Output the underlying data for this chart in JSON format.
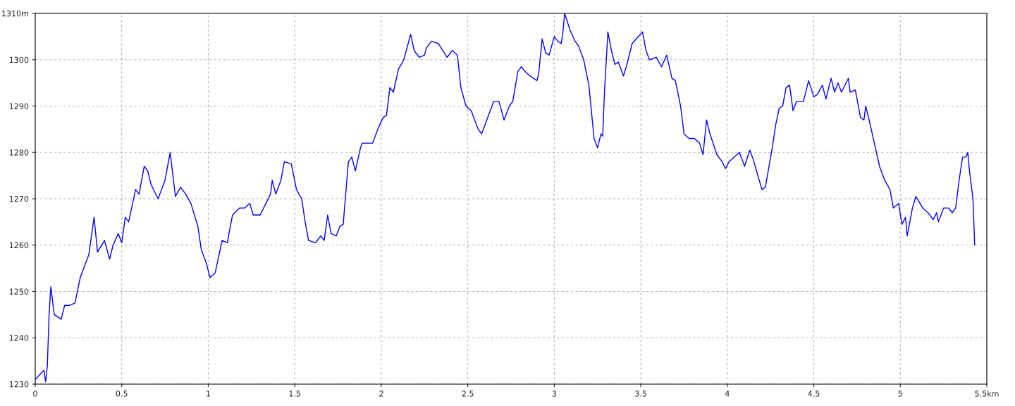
{
  "chart_data": {
    "type": "line",
    "x": [
      0,
      0.05,
      0.06,
      0.07,
      0.08,
      0.09,
      0.11,
      0.15,
      0.17,
      0.2,
      0.23,
      0.26,
      0.29,
      0.31,
      0.34,
      0.36,
      0.4,
      0.43,
      0.45,
      0.48,
      0.5,
      0.52,
      0.54,
      0.58,
      0.6,
      0.63,
      0.65,
      0.67,
      0.71,
      0.75,
      0.78,
      0.81,
      0.84,
      0.87,
      0.9,
      0.94,
      0.96,
      0.99,
      1.01,
      1.04,
      1.08,
      1.11,
      1.14,
      1.18,
      1.21,
      1.24,
      1.26,
      1.3,
      1.36,
      1.37,
      1.39,
      1.42,
      1.44,
      1.48,
      1.51,
      1.54,
      1.56,
      1.58,
      1.62,
      1.65,
      1.67,
      1.69,
      1.71,
      1.74,
      1.76,
      1.78,
      1.81,
      1.83,
      1.85,
      1.88,
      1.89,
      1.95,
      1.98,
      2.01,
      2.03,
      2.05,
      2.07,
      2.1,
      2.13,
      2.17,
      2.19,
      2.22,
      2.25,
      2.26,
      2.29,
      2.33,
      2.38,
      2.41,
      2.44,
      2.46,
      2.49,
      2.52,
      2.56,
      2.58,
      2.63,
      2.65,
      2.68,
      2.71,
      2.74,
      2.76,
      2.79,
      2.81,
      2.83,
      2.86,
      2.9,
      2.91,
      2.93,
      2.95,
      2.97,
      3.0,
      3.02,
      3.04,
      3.05,
      3.06,
      3.09,
      3.12,
      3.14,
      3.17,
      3.2,
      3.23,
      3.25,
      3.27,
      3.28,
      3.29,
      3.31,
      3.33,
      3.35,
      3.37,
      3.4,
      3.42,
      3.45,
      3.51,
      3.53,
      3.55,
      3.59,
      3.62,
      3.65,
      3.68,
      3.7,
      3.73,
      3.75,
      3.78,
      3.81,
      3.84,
      3.86,
      3.88,
      3.9,
      3.94,
      3.97,
      3.99,
      4.01,
      4.07,
      4.1,
      4.13,
      4.15,
      4.2,
      4.22,
      4.26,
      4.28,
      4.3,
      4.32,
      4.34,
      4.36,
      4.38,
      4.4,
      4.44,
      4.47,
      4.5,
      4.52,
      4.55,
      4.57,
      4.6,
      4.62,
      4.64,
      4.66,
      4.7,
      4.71,
      4.74,
      4.77,
      4.79,
      4.8,
      4.82,
      4.85,
      4.88,
      4.91,
      4.94,
      4.96,
      4.99,
      5.01,
      5.03,
      5.04,
      5.07,
      5.09,
      5.13,
      5.16,
      5.19,
      5.21,
      5.22,
      5.25,
      5.28,
      5.3,
      5.32,
      5.34,
      5.36,
      5.38,
      5.39,
      5.4,
      5.42,
      5.43
    ],
    "series": [
      {
        "color": "#0000ff",
        "values": [
          1231,
          1233,
          1230.5,
          1234,
          1245,
          1251,
          1245,
          1244,
          1247,
          1247,
          1247.5,
          1253,
          1256,
          1258,
          1266,
          1258.5,
          1261,
          1257,
          1260,
          1262.5,
          1260.5,
          1266,
          1265,
          1272,
          1271,
          1277,
          1276,
          1273,
          1270,
          1274,
          1280,
          1270.5,
          1272.5,
          1271,
          1269,
          1264,
          1259,
          1256,
          1253,
          1254,
          1261,
          1260.5,
          1266.5,
          1268,
          1268,
          1269,
          1266.5,
          1266.5,
          1271,
          1274,
          1271,
          1274,
          1278,
          1277.5,
          1272,
          1270,
          1265,
          1261,
          1260.5,
          1262,
          1261,
          1266.5,
          1262.5,
          1262,
          1264,
          1264.5,
          1278,
          1279,
          1276,
          1281,
          1282,
          1282,
          1285,
          1287.5,
          1288,
          1294,
          1293,
          1298,
          1300,
          1305.5,
          1302,
          1300.5,
          1301,
          1302.5,
          1304,
          1303.5,
          1300.5,
          1302,
          1301,
          1294,
          1290,
          1289,
          1285,
          1284,
          1289,
          1291,
          1291,
          1287,
          1290,
          1291,
          1297.5,
          1298.5,
          1297.5,
          1296.5,
          1295.5,
          1297,
          1304.5,
          1301.5,
          1301,
          1305,
          1304,
          1303.5,
          1306,
          1310,
          1306.5,
          1304,
          1303,
          1300,
          1294.5,
          1283,
          1281,
          1284,
          1283.5,
          1293,
          1306,
          1302,
          1299,
          1299.5,
          1296.5,
          1299,
          1303.5,
          1306,
          1302,
          1300,
          1300.5,
          1298.5,
          1301,
          1296,
          1295.5,
          1290,
          1284,
          1283,
          1283,
          1282,
          1279.5,
          1287,
          1284,
          1279.5,
          1278,
          1276.5,
          1278,
          1280,
          1277,
          1280.5,
          1278.5,
          1272,
          1272.5,
          1281,
          1286,
          1289.5,
          1290,
          1294,
          1294.5,
          1289,
          1291,
          1291,
          1295.5,
          1292,
          1292.5,
          1294.5,
          1291.5,
          1296,
          1293,
          1295,
          1293,
          1296,
          1293,
          1293.5,
          1287.5,
          1287,
          1290,
          1287,
          1282,
          1277,
          1274,
          1272,
          1268,
          1269,
          1264.5,
          1266,
          1262,
          1268,
          1270.5,
          1268,
          1267,
          1265.5,
          1267,
          1265,
          1268,
          1268,
          1267,
          1268,
          1274,
          1279,
          1279,
          1280,
          1276,
          1270,
          1260
        ]
      }
    ],
    "xlim": [
      0,
      5.5
    ],
    "xticks": [
      0,
      0.5,
      1,
      1.5,
      2,
      2.5,
      3,
      3.5,
      4,
      4.5,
      5,
      {
        "value": 5.5,
        "label": "5.5km"
      }
    ],
    "ylim": [
      1230,
      1310
    ],
    "yticks": [
      1230,
      1240,
      1250,
      1260,
      1270,
      1280,
      1290,
      1300,
      {
        "value": 1310,
        "label": "1310m"
      }
    ],
    "grid": true,
    "line_style": "solid",
    "marker": "none"
  }
}
